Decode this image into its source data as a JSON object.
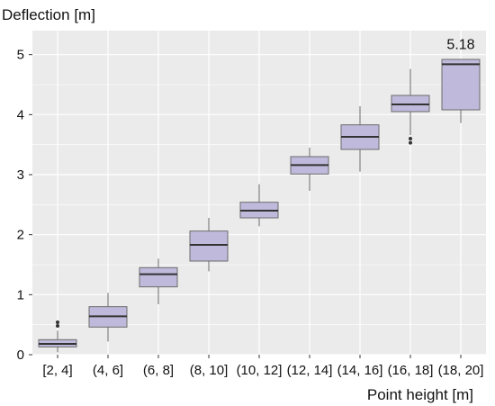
{
  "chart_data": {
    "type": "box",
    "ylabel": "Deflection [m]",
    "xlabel": "Point height [m]",
    "ylim": [
      0,
      5.4
    ],
    "yticks": [
      0,
      1,
      2,
      3,
      4,
      5
    ],
    "grid": true,
    "colors": {
      "panel": "#ebebeb",
      "grid": "#ffffff",
      "box_fill": "#bfbadb",
      "box_stroke": "#6b6b6b",
      "median": "#333333",
      "outlier": "#333333"
    },
    "categories": [
      "[2, 4]",
      "(4, 6]",
      "(6, 8]",
      "(8, 10]",
      "(10, 12]",
      "(12, 14]",
      "(14, 16]",
      "(16, 18]",
      "(18, 20]"
    ],
    "boxes": [
      {
        "min": 0.04,
        "q1": 0.13,
        "median": 0.18,
        "q3": 0.25,
        "max": 0.4,
        "outliers": [
          0.48,
          0.54
        ]
      },
      {
        "min": 0.22,
        "q1": 0.46,
        "median": 0.64,
        "q3": 0.8,
        "max": 1.03,
        "outliers": []
      },
      {
        "min": 0.84,
        "q1": 1.13,
        "median": 1.34,
        "q3": 1.45,
        "max": 1.6,
        "outliers": []
      },
      {
        "min": 1.39,
        "q1": 1.56,
        "median": 1.83,
        "q3": 2.06,
        "max": 2.28,
        "outliers": []
      },
      {
        "min": 2.14,
        "q1": 2.28,
        "median": 2.4,
        "q3": 2.54,
        "max": 2.84,
        "outliers": []
      },
      {
        "min": 2.73,
        "q1": 3.01,
        "median": 3.16,
        "q3": 3.3,
        "max": 3.45,
        "outliers": []
      },
      {
        "min": 3.05,
        "q1": 3.42,
        "median": 3.63,
        "q3": 3.83,
        "max": 4.14,
        "outliers": []
      },
      {
        "min": 3.66,
        "q1": 4.05,
        "median": 4.17,
        "q3": 4.32,
        "max": 4.76,
        "outliers": [
          3.53,
          3.6
        ]
      },
      {
        "min": 3.86,
        "q1": 4.08,
        "median": 4.84,
        "q3": 4.92,
        "max": 4.92,
        "outliers": []
      }
    ],
    "annotations": [
      {
        "category": "(18, 20]",
        "value": 5.18,
        "text": "5.18"
      }
    ]
  }
}
